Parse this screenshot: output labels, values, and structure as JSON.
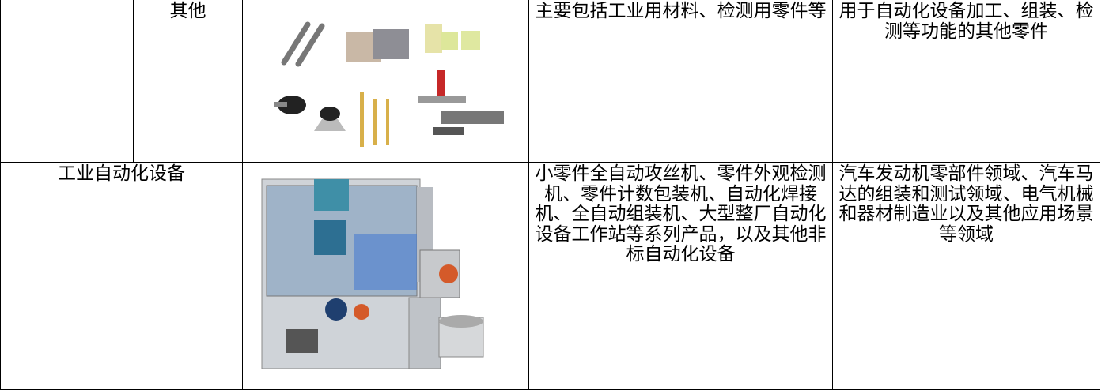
{
  "table": {
    "rows": [
      [
        "其他",
        "主要包括工业用材料、检测用零件等",
        "用于自动化设备加工、组装、检测等功能的其他零件"
      ],
      [
        "工业自动化设备",
        "小零件全自动攻丝机、零件外观检测机、零件计数包装机、自动化焊接机、全自动组装机、大型整厂自动化设备工作站等系列产品，以及其他非标自动化设备",
        "汽车发动机零部件领域、汽车马达的组装和测试领域、电气机械和器材制造业以及其他应用场景等领域"
      ]
    ]
  }
}
